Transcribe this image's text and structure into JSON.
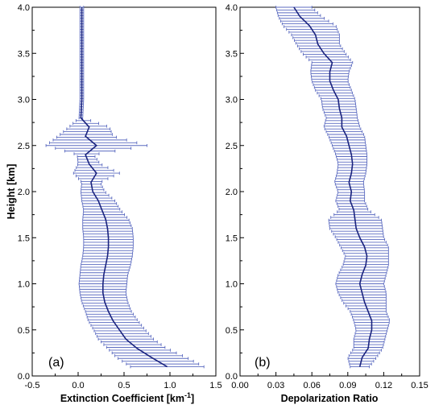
{
  "chart_data": [
    {
      "type": "line",
      "panel_label": "(a)",
      "xlabel": "Extinction Coefficient [km",
      "xlabel_sup": "-1",
      "xlabel_end": "]",
      "ylabel": "Height [km]",
      "xlim": [
        -0.5,
        1.5
      ],
      "ylim": [
        0.0,
        4.0
      ],
      "xticks": [
        "-0.5",
        "0.0",
        "0.5",
        "1.0",
        "1.5"
      ],
      "yticks": [
        "0.0",
        "0.5",
        "1.0",
        "1.5",
        "2.0",
        "2.5",
        "3.0",
        "3.5",
        "4.0"
      ],
      "line_color": "#1a237e",
      "errorbar_color": "#5c6bc0",
      "series": [
        {
          "height": [
            0.1,
            0.2,
            0.3,
            0.4,
            0.5,
            0.6,
            0.7,
            0.8,
            0.9,
            1.0,
            1.1,
            1.2,
            1.3,
            1.4,
            1.5,
            1.6,
            1.7,
            1.8,
            1.9,
            2.0,
            2.1,
            2.2,
            2.3,
            2.4,
            2.5,
            2.6,
            2.7,
            2.8,
            3.0,
            3.2,
            3.4,
            3.6,
            3.8,
            4.0
          ],
          "x": [
            0.97,
            0.8,
            0.64,
            0.52,
            0.45,
            0.38,
            0.33,
            0.29,
            0.27,
            0.27,
            0.28,
            0.3,
            0.32,
            0.33,
            0.33,
            0.32,
            0.3,
            0.26,
            0.22,
            0.16,
            0.14,
            0.2,
            0.12,
            0.08,
            0.2,
            0.08,
            0.12,
            0.03,
            0.04,
            0.04,
            0.04,
            0.04,
            0.04,
            0.04
          ],
          "xerr": [
            0.4,
            0.38,
            0.32,
            0.3,
            0.28,
            0.27,
            0.25,
            0.25,
            0.25,
            0.26,
            0.26,
            0.27,
            0.27,
            0.27,
            0.27,
            0.27,
            0.25,
            0.2,
            0.18,
            0.13,
            0.1,
            0.25,
            0.12,
            0.09,
            0.55,
            0.3,
            0.22,
            0.02,
            0.02,
            0.02,
            0.02,
            0.02,
            0.02,
            0.02
          ]
        }
      ]
    },
    {
      "type": "line",
      "panel_label": "(b)",
      "xlabel": "Depolarization Ratio",
      "xlim": [
        0.0,
        0.15
      ],
      "ylim": [
        0.0,
        4.0
      ],
      "xticks": [
        "0.00",
        "0.03",
        "0.06",
        "0.09",
        "0.12",
        "0.15"
      ],
      "yticks": [
        "0.0",
        "0.5",
        "1.0",
        "1.5",
        "2.0",
        "2.5",
        "3.0",
        "3.5",
        "4.0"
      ],
      "line_color": "#1a237e",
      "errorbar_color": "#5c6bc0",
      "series": [
        {
          "height": [
            0.1,
            0.2,
            0.3,
            0.4,
            0.5,
            0.6,
            0.7,
            0.8,
            0.9,
            1.0,
            1.1,
            1.2,
            1.3,
            1.4,
            1.5,
            1.6,
            1.7,
            1.8,
            1.9,
            2.0,
            2.1,
            2.2,
            2.3,
            2.4,
            2.5,
            2.6,
            2.7,
            2.8,
            2.9,
            3.0,
            3.1,
            3.2,
            3.3,
            3.4,
            3.5,
            3.6,
            3.7,
            3.8,
            3.9,
            4.0
          ],
          "x": [
            0.1,
            0.102,
            0.107,
            0.108,
            0.11,
            0.11,
            0.107,
            0.104,
            0.102,
            0.1,
            0.102,
            0.105,
            0.106,
            0.104,
            0.1,
            0.097,
            0.096,
            0.095,
            0.092,
            0.093,
            0.091,
            0.093,
            0.094,
            0.093,
            0.091,
            0.089,
            0.085,
            0.085,
            0.083,
            0.082,
            0.078,
            0.075,
            0.075,
            0.077,
            0.07,
            0.065,
            0.063,
            0.058,
            0.05,
            0.045
          ],
          "xerr": [
            0.008,
            0.012,
            0.012,
            0.013,
            0.013,
            0.015,
            0.015,
            0.018,
            0.02,
            0.02,
            0.02,
            0.019,
            0.018,
            0.02,
            0.02,
            0.022,
            0.022,
            0.012,
            0.012,
            0.011,
            0.012,
            0.012,
            0.012,
            0.013,
            0.014,
            0.015,
            0.015,
            0.013,
            0.014,
            0.014,
            0.015,
            0.015,
            0.016,
            0.017,
            0.018,
            0.018,
            0.02,
            0.022,
            0.018,
            0.015
          ]
        }
      ]
    }
  ]
}
